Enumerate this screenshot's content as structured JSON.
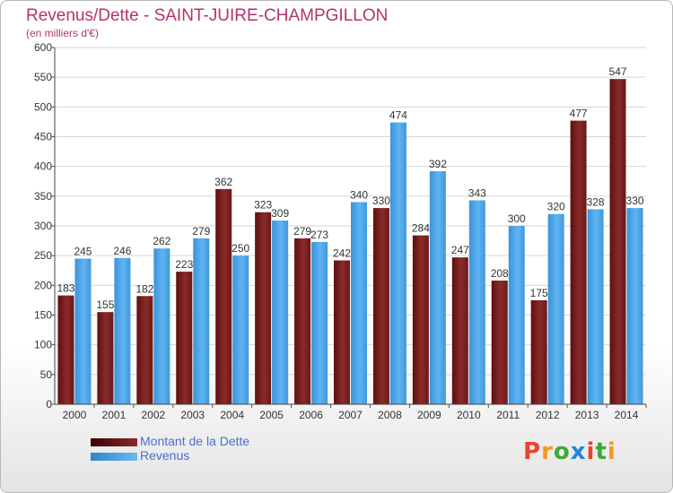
{
  "header": {
    "title": "Revenus/Dette - SAINT-JUIRE-CHAMPGILLON",
    "subtitle": "(en milliers d'€)"
  },
  "legend": [
    {
      "label": "Montant de la Dette"
    },
    {
      "label": "Revenus"
    }
  ],
  "logo": {
    "text": "Proxiti",
    "colors": [
      "#e8442c",
      "#f39a1f",
      "#3aa935",
      "#1f88d6",
      "#e8442c",
      "#3aa935",
      "#f39a1f"
    ]
  },
  "chart_data": {
    "type": "bar",
    "categories": [
      "2000",
      "2001",
      "2002",
      "2003",
      "2004",
      "2005",
      "2006",
      "2007",
      "2008",
      "2009",
      "2010",
      "2011",
      "2012",
      "2013",
      "2014"
    ],
    "series": [
      {
        "name": "Montant de la Dette",
        "color": "#7a1f1f",
        "values": [
          183,
          155,
          182,
          223,
          362,
          323,
          279,
          242,
          330,
          284,
          247,
          208,
          175,
          477,
          547
        ]
      },
      {
        "name": "Revenus",
        "color": "#4aa3e6",
        "values": [
          245,
          246,
          262,
          279,
          250,
          309,
          273,
          340,
          474,
          392,
          343,
          300,
          320,
          328,
          330
        ]
      }
    ],
    "ylim": [
      0,
      600
    ],
    "yticks": [
      0,
      50,
      100,
      150,
      200,
      250,
      300,
      350,
      400,
      450,
      500,
      550,
      600
    ],
    "grid": true
  }
}
